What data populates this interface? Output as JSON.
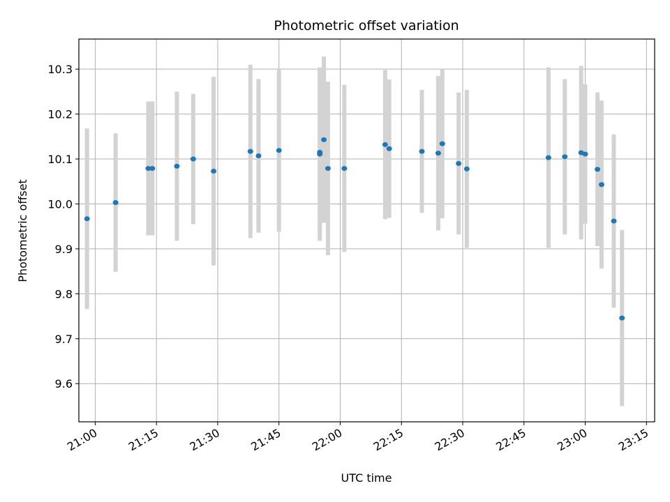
{
  "chart_data": {
    "type": "scatter",
    "title": "Photometric offset variation",
    "xlabel": "UTC time",
    "ylabel": "Photometric offset",
    "x_axis": "time",
    "xlim": [
      "20:56",
      "23:17"
    ],
    "ylim": [
      9.515,
      10.367
    ],
    "x_ticks": [
      "21:00",
      "21:15",
      "21:30",
      "21:45",
      "22:00",
      "22:15",
      "22:30",
      "22:45",
      "23:00",
      "23:15"
    ],
    "y_ticks": [
      9.6,
      9.7,
      9.8,
      9.9,
      10.0,
      10.1,
      10.2,
      10.3
    ],
    "grid": true,
    "colors": {
      "point": "#1f77b4",
      "errorbar": "#d3d3d3",
      "grid": "#b0b0b0"
    },
    "series": [
      {
        "points": [
          {
            "x": "20:58",
            "y": 9.967,
            "err": 0.201
          },
          {
            "x": "21:05",
            "y": 10.003,
            "err": 0.154
          },
          {
            "x": "21:13",
            "y": 10.079,
            "err": 0.149
          },
          {
            "x": "21:14",
            "y": 10.079,
            "err": 0.149
          },
          {
            "x": "21:20",
            "y": 10.084,
            "err": 0.166
          },
          {
            "x": "21:24",
            "y": 10.1,
            "err": 0.145
          },
          {
            "x": "21:29",
            "y": 10.073,
            "err": 0.21
          },
          {
            "x": "21:38",
            "y": 10.117,
            "err": 0.193
          },
          {
            "x": "21:40",
            "y": 10.107,
            "err": 0.171
          },
          {
            "x": "21:45",
            "y": 10.119,
            "err": 0.181
          },
          {
            "x": "21:55",
            "y": 10.111,
            "err": 0.193
          },
          {
            "x": "21:55",
            "y": 10.115,
            "err": 0.186
          },
          {
            "x": "21:56",
            "y": 10.143,
            "err": 0.185
          },
          {
            "x": "21:57",
            "y": 10.079,
            "err": 0.193
          },
          {
            "x": "22:01",
            "y": 10.079,
            "err": 0.186
          },
          {
            "x": "22:11",
            "y": 10.132,
            "err": 0.166
          },
          {
            "x": "22:12",
            "y": 10.123,
            "err": 0.154
          },
          {
            "x": "22:20",
            "y": 10.117,
            "err": 0.137
          },
          {
            "x": "22:24",
            "y": 10.113,
            "err": 0.172
          },
          {
            "x": "22:25",
            "y": 10.134,
            "err": 0.166
          },
          {
            "x": "22:29",
            "y": 10.09,
            "err": 0.158
          },
          {
            "x": "22:31",
            "y": 10.078,
            "err": 0.176
          },
          {
            "x": "22:51",
            "y": 10.103,
            "err": 0.201
          },
          {
            "x": "22:55",
            "y": 10.105,
            "err": 0.173
          },
          {
            "x": "22:59",
            "y": 10.114,
            "err": 0.193
          },
          {
            "x": "23:00",
            "y": 10.111,
            "err": 0.155
          },
          {
            "x": "23:03",
            "y": 10.077,
            "err": 0.171
          },
          {
            "x": "23:04",
            "y": 10.043,
            "err": 0.187
          },
          {
            "x": "23:07",
            "y": 9.962,
            "err": 0.193
          },
          {
            "x": "23:09",
            "y": 9.746,
            "err": 0.196
          }
        ]
      }
    ]
  }
}
